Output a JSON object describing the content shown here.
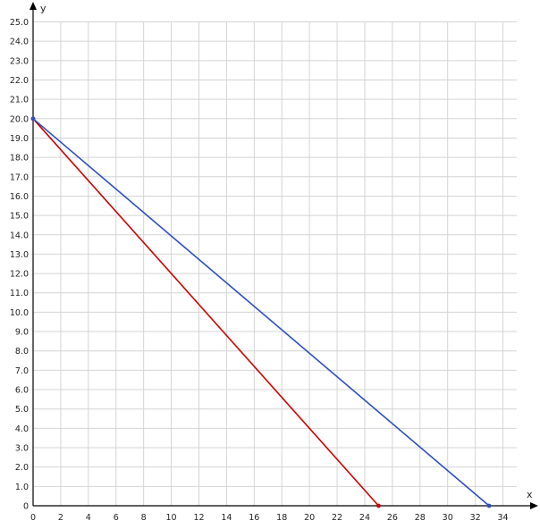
{
  "chart_data": {
    "type": "line",
    "title": "",
    "xlabel": "x",
    "ylabel": "y",
    "xlim": [
      0,
      35
    ],
    "ylim": [
      0,
      25
    ],
    "x_ticks": [
      0,
      2,
      4,
      6,
      8,
      10,
      12,
      14,
      16,
      18,
      20,
      22,
      24,
      26,
      28,
      30,
      32,
      34
    ],
    "y_ticks": [
      "0",
      "1.0",
      "2.0",
      "3.0",
      "4.0",
      "5.0",
      "6.0",
      "7.0",
      "8.0",
      "9.0",
      "10.0",
      "11.0",
      "12.0",
      "13.0",
      "14.0",
      "15.0",
      "16.0",
      "17.0",
      "18.0",
      "19.0",
      "20.0",
      "21.0",
      "22.0",
      "23.0",
      "24.0",
      "25.0"
    ],
    "grid": true,
    "series": [
      {
        "color": "#cc0000",
        "points": [
          [
            0,
            20
          ],
          [
            25,
            0
          ]
        ]
      },
      {
        "color": "#2f4fbf",
        "points": [
          [
            0,
            20
          ],
          [
            33,
            0
          ]
        ]
      }
    ]
  }
}
